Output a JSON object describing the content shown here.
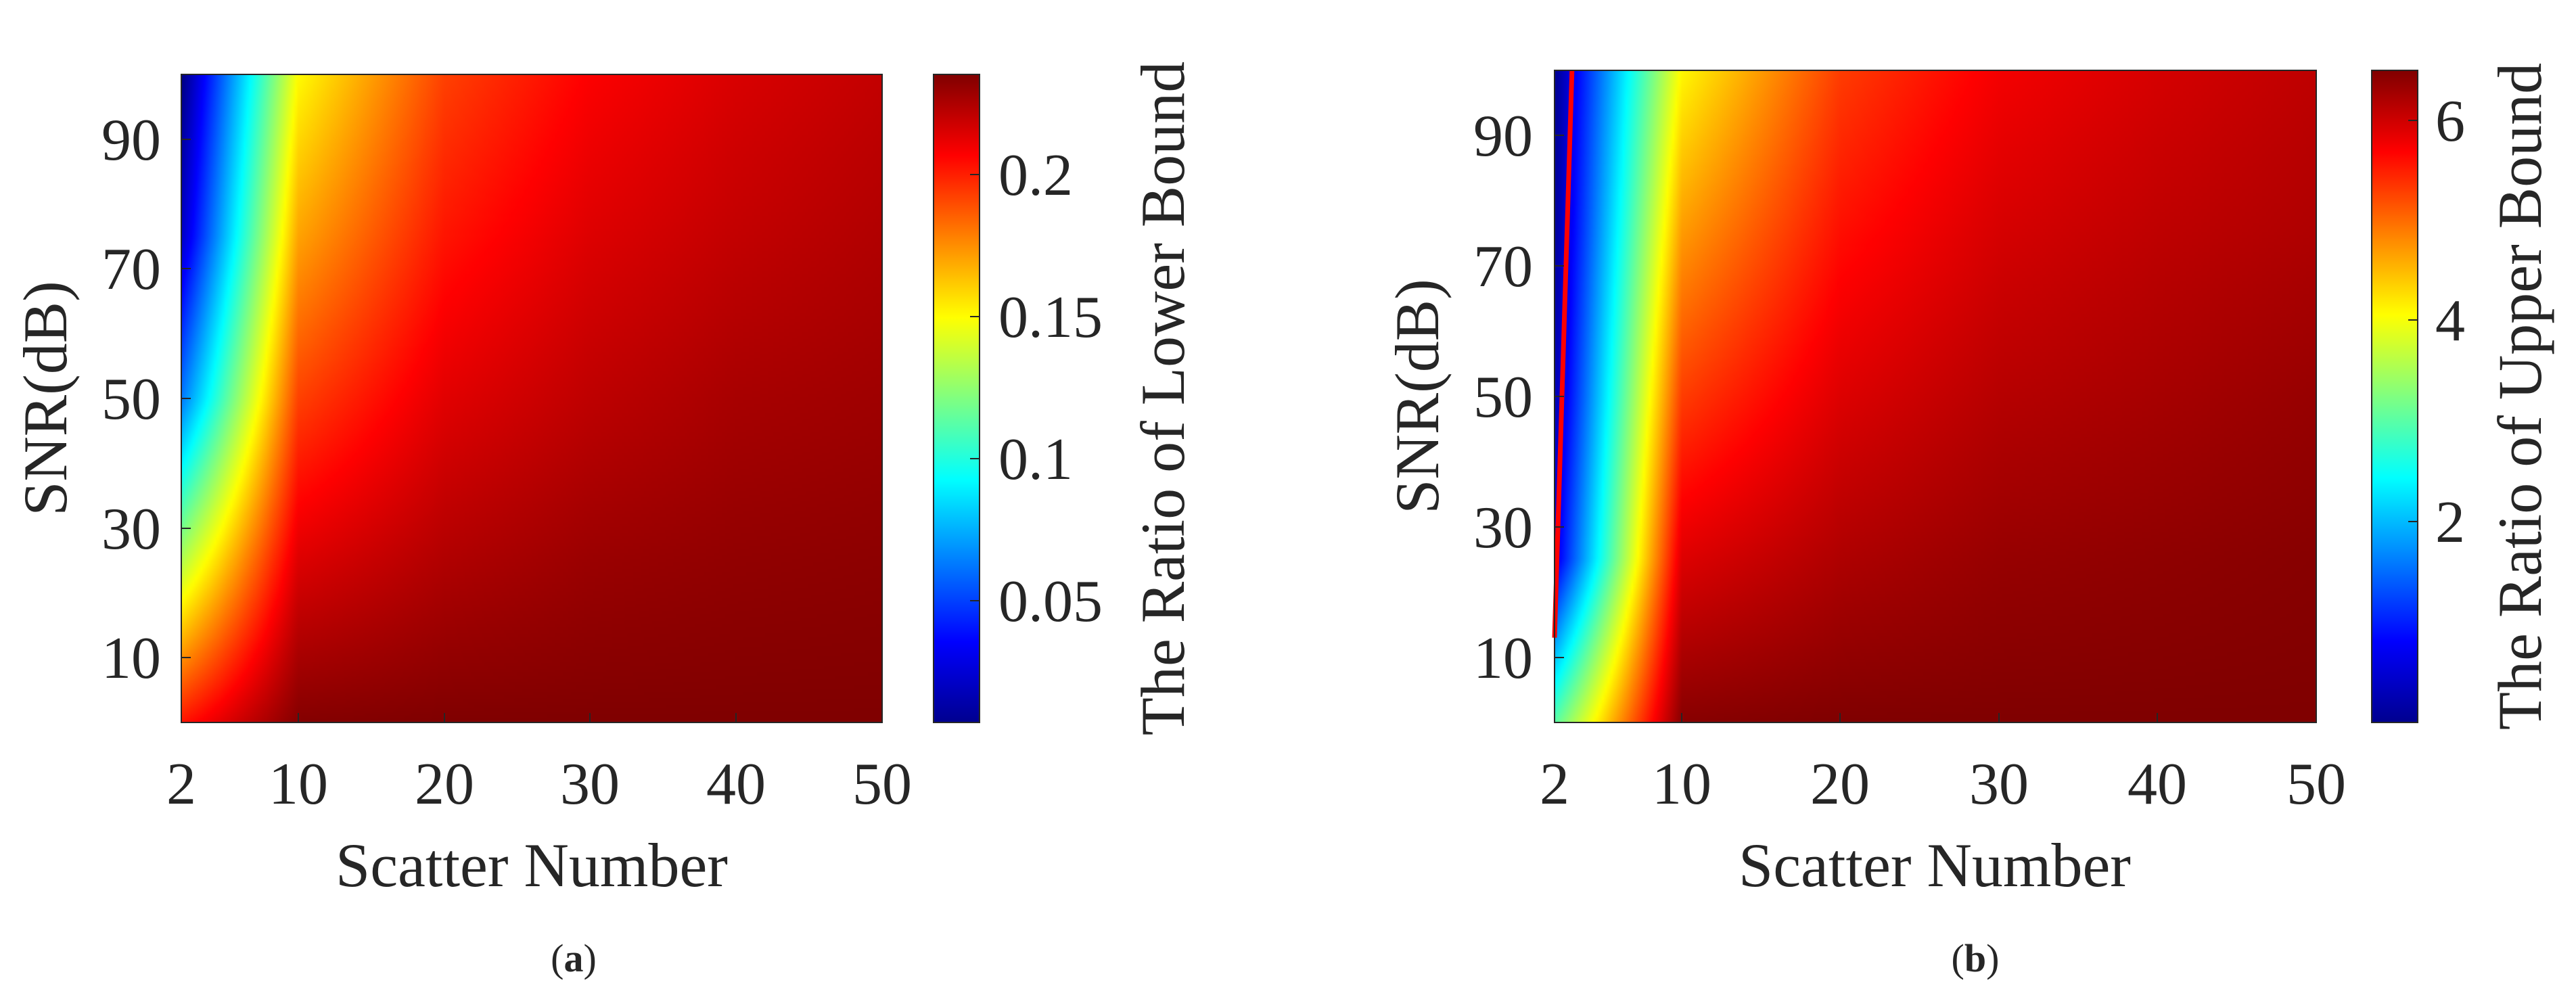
{
  "chart_data": [
    {
      "type": "heatmap",
      "panel": "a",
      "title": "",
      "xlabel": "Scatter Number",
      "ylabel": "SNR(dB)",
      "xlim": [
        2,
        50
      ],
      "ylim": [
        0,
        100
      ],
      "x_ticks": [
        2,
        10,
        20,
        30,
        40,
        50
      ],
      "y_ticks": [
        10,
        30,
        50,
        70,
        90
      ],
      "colorbar": {
        "label": "The Ratio of Lower Bound",
        "colormap": "jet",
        "range": [
          0.005,
          0.233
        ],
        "ticks": [
          0.05,
          0.1,
          0.15,
          0.2
        ],
        "tick_labels": [
          "0.05",
          "0.1",
          "0.15",
          "0.2"
        ]
      },
      "trend": "ratio increases with scatter number and decreases with SNR; lowest (~0.005) at scatter number 2 and SNR 100 dB, highest (~0.233) at scatter number 50 and SNR 0 dB",
      "sample_grid": {
        "x": [
          2,
          10,
          20,
          30,
          40,
          50
        ],
        "y": [
          0,
          25,
          50,
          75,
          100
        ],
        "z": [
          [
            0.2,
            0.232,
            0.233,
            0.233,
            0.233,
            0.233
          ],
          [
            0.13,
            0.212,
            0.222,
            0.227,
            0.229,
            0.23
          ],
          [
            0.06,
            0.19,
            0.211,
            0.219,
            0.224,
            0.226
          ],
          [
            0.02,
            0.168,
            0.2,
            0.212,
            0.218,
            0.222
          ],
          [
            0.005,
            0.148,
            0.19,
            0.205,
            0.213,
            0.218
          ]
        ]
      },
      "caption": {
        "open": "(",
        "letter": "a",
        "close": ")"
      }
    },
    {
      "type": "heatmap",
      "panel": "b",
      "title": "",
      "xlabel": "Scatter Number",
      "ylabel": "SNR(dB)",
      "xlim": [
        2,
        50
      ],
      "ylim": [
        0,
        100
      ],
      "x_ticks": [
        2,
        10,
        20,
        30,
        40,
        50
      ],
      "y_ticks": [
        10,
        30,
        50,
        70,
        90
      ],
      "colorbar": {
        "label": "The Ratio of Upper Bound",
        "colormap": "jet",
        "range": [
          0.0,
          6.5
        ],
        "ticks": [
          2,
          4,
          6
        ],
        "tick_labels": [
          "2",
          "4",
          "6"
        ]
      },
      "annotations": [
        {
          "type": "line",
          "color": "#ff0000",
          "points": [
            [
              2.0,
              13
            ],
            [
              3.1,
              100
            ]
          ],
          "description": "red contour line near scatter number 2-3"
        }
      ],
      "trend": "ratio increases with scatter number and decreases with SNR; lowest near scatter number 2 at high SNR, highest (~6.5) at scatter number 50 and SNR 0 dB",
      "sample_grid": {
        "x": [
          2,
          10,
          20,
          30,
          40,
          50
        ],
        "y": [
          0,
          25,
          50,
          75,
          100
        ],
        "z": [
          [
            3.0,
            6.45,
            6.5,
            6.5,
            6.5,
            6.5
          ],
          [
            0.6,
            5.9,
            6.2,
            6.35,
            6.4,
            6.45
          ],
          [
            0.3,
            5.3,
            5.9,
            6.15,
            6.25,
            6.35
          ],
          [
            0.15,
            4.7,
            5.6,
            5.95,
            6.1,
            6.2
          ],
          [
            0.1,
            4.1,
            5.3,
            5.75,
            5.95,
            6.1
          ]
        ]
      },
      "caption": {
        "open": "(",
        "letter": "b",
        "close": ")"
      }
    }
  ]
}
